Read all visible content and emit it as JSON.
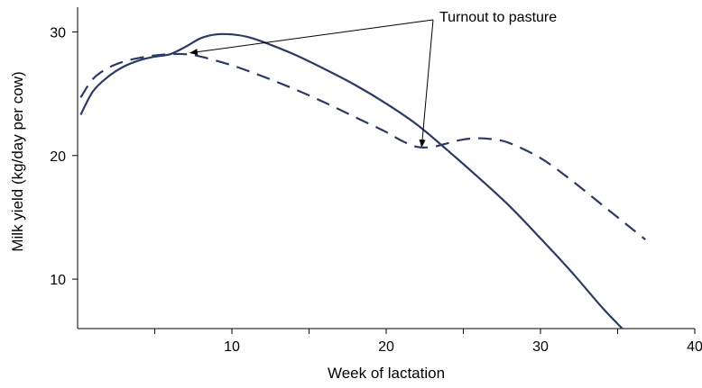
{
  "chart_data": {
    "type": "line",
    "xlabel": "Week of lactation",
    "ylabel": "Milk yield (kg/day per cow)",
    "xlim": [
      0,
      40
    ],
    "ylim": [
      6,
      32
    ],
    "x_ticks": [
      10,
      20,
      30,
      40
    ],
    "x_minor_ticks": [
      5,
      15,
      25,
      35
    ],
    "y_ticks": [
      10,
      20,
      30
    ],
    "grid": false,
    "legend": "none",
    "series": [
      {
        "style": "solid",
        "color": "#2c3a63",
        "x": [
          0.2,
          1,
          2,
          3,
          4,
          5,
          6,
          7,
          8,
          9,
          10,
          11,
          12,
          14,
          16,
          18,
          20,
          22,
          24,
          26,
          28,
          30,
          32,
          34,
          35.3
        ],
        "y": [
          23.3,
          25.2,
          26.4,
          27.2,
          27.7,
          28.0,
          28.2,
          28.8,
          29.5,
          29.8,
          29.8,
          29.6,
          29.2,
          28.2,
          27.0,
          25.7,
          24.2,
          22.5,
          20.4,
          18.2,
          15.9,
          13.3,
          10.6,
          7.7,
          6.0
        ]
      },
      {
        "style": "dashed",
        "color": "#2c3a63",
        "x": [
          0.2,
          1,
          2,
          3,
          4,
          5,
          6,
          7,
          8,
          10,
          12,
          14,
          16,
          18,
          20,
          21,
          22,
          23,
          24,
          25,
          26,
          27,
          28,
          30,
          32,
          34,
          36,
          36.8
        ],
        "y": [
          24.7,
          26.2,
          27.1,
          27.6,
          27.9,
          28.1,
          28.2,
          28.2,
          28.0,
          27.3,
          26.4,
          25.4,
          24.3,
          23.1,
          21.9,
          21.2,
          20.7,
          20.7,
          21.0,
          21.3,
          21.4,
          21.3,
          21.0,
          19.8,
          18.0,
          16.0,
          14.0,
          13.2
        ]
      }
    ],
    "annotations": [
      {
        "text": "Turnout to pasture",
        "arrows_to": [
          [
            7.3,
            28.3
          ],
          [
            22.3,
            20.7
          ]
        ]
      }
    ]
  }
}
